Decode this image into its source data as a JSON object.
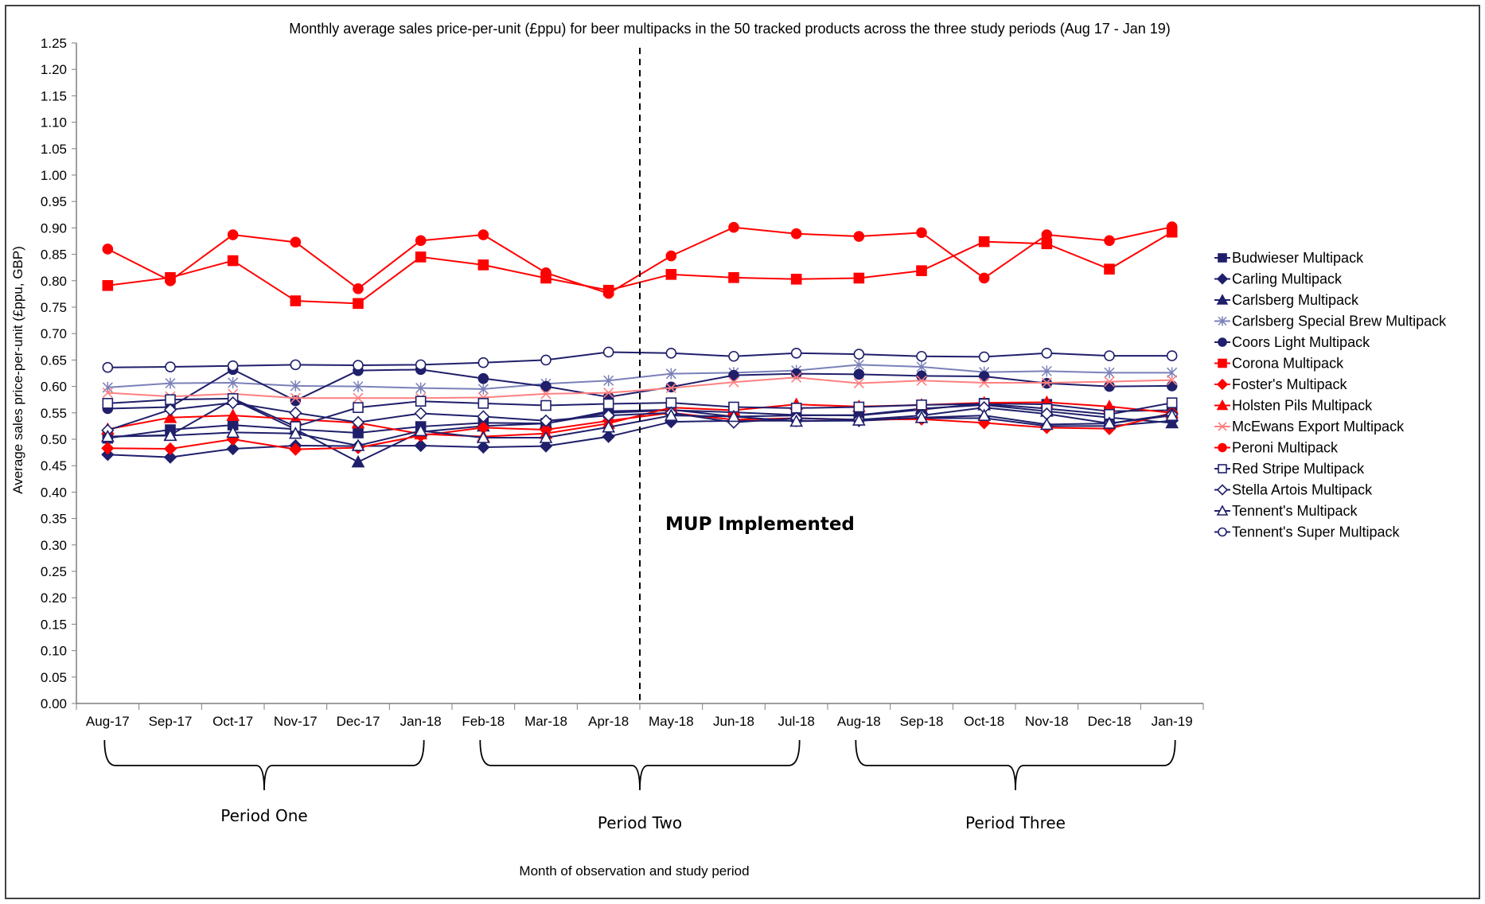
{
  "chart_data": {
    "type": "line",
    "title": "Monthly average sales price-per-unit (£ppu) for beer multipacks in the 50 tracked products across the three study periods (Aug 17 - Jan 19)",
    "xlabel": "Month of observation and study period",
    "ylabel": "Average sales price-per-unit (£ppu, GBP)",
    "ylim": [
      0,
      1.25
    ],
    "ytick_step": 0.05,
    "yticks": [
      "0.00",
      "0.05",
      "0.10",
      "0.15",
      "0.20",
      "0.25",
      "0.30",
      "0.35",
      "0.40",
      "0.45",
      "0.50",
      "0.55",
      "0.60",
      "0.65",
      "0.70",
      "0.75",
      "0.80",
      "0.85",
      "0.90",
      "0.95",
      "1.00",
      "1.05",
      "1.10",
      "1.15",
      "1.20",
      "1.25"
    ],
    "grid": false,
    "legend_position": "right",
    "categories": [
      "Aug-17",
      "Sep-17",
      "Oct-17",
      "Nov-17",
      "Dec-17",
      "Jan-18",
      "Feb-18",
      "Mar-18",
      "Apr-18",
      "May-18",
      "Jun-18",
      "Jul-18",
      "Aug-18",
      "Sep-18",
      "Oct-18",
      "Nov-18",
      "Dec-18",
      "Jan-19"
    ],
    "annotations": [
      {
        "text": "MUP Implemented",
        "after_category": "Apr-18"
      }
    ],
    "periods": [
      {
        "label": "Period One",
        "from": "Aug-17",
        "to": "Jan-18"
      },
      {
        "label": "Period Two",
        "from": "Feb-18",
        "to": "Jul-18"
      },
      {
        "label": "Period Three",
        "from": "Aug-18",
        "to": "Jan-19"
      }
    ],
    "series": [
      {
        "name": "Budwieser Multipack",
        "color": "#1f1f6b",
        "marker": "square-filled",
        "values": [
          0.502,
          0.518,
          0.527,
          0.519,
          0.512,
          0.524,
          0.531,
          0.53,
          0.55,
          0.555,
          0.551,
          0.546,
          0.545,
          0.556,
          0.568,
          0.566,
          0.553,
          0.555
        ]
      },
      {
        "name": "Carling Multipack",
        "color": "#1f1f6b",
        "marker": "diamond-filled",
        "values": [
          0.471,
          0.466,
          0.482,
          0.488,
          0.487,
          0.488,
          0.485,
          0.487,
          0.505,
          0.533,
          0.535,
          0.535,
          0.535,
          0.54,
          0.54,
          0.525,
          0.525,
          0.535
        ]
      },
      {
        "name": "Carlsberg Multipack",
        "color": "#1f1f6b",
        "marker": "triangle-filled",
        "values": [
          0.505,
          0.508,
          0.575,
          0.519,
          0.457,
          0.514,
          0.525,
          0.53,
          0.553,
          0.556,
          0.543,
          0.545,
          0.546,
          0.558,
          0.565,
          0.553,
          0.541,
          0.531
        ]
      },
      {
        "name": "Carlsberg Special Brew Multipack",
        "color": "#7a80b8",
        "marker": "asterisk",
        "values": [
          0.598,
          0.606,
          0.607,
          0.601,
          0.6,
          0.597,
          0.595,
          0.605,
          0.611,
          0.624,
          0.626,
          0.63,
          0.641,
          0.637,
          0.627,
          0.629,
          0.626,
          0.626
        ]
      },
      {
        "name": "Coors Light Multipack",
        "color": "#1f1f6b",
        "marker": "circle-filled",
        "values": [
          0.558,
          0.561,
          0.632,
          0.573,
          0.63,
          0.632,
          0.615,
          0.6,
          0.58,
          0.599,
          0.621,
          0.624,
          0.623,
          0.62,
          0.619,
          0.606,
          0.6,
          0.601
        ]
      },
      {
        "name": "Corona Multipack",
        "color": "#ff0000",
        "marker": "square-filled",
        "values": [
          0.791,
          0.806,
          0.838,
          0.762,
          0.757,
          0.845,
          0.83,
          0.805,
          0.782,
          0.812,
          0.806,
          0.803,
          0.805,
          0.819,
          0.874,
          0.87,
          0.822,
          0.892
        ]
      },
      {
        "name": "Foster's Multipack",
        "color": "#ff0000",
        "marker": "diamond-filled",
        "values": [
          0.483,
          0.482,
          0.5,
          0.481,
          0.484,
          0.507,
          0.522,
          0.518,
          0.535,
          0.55,
          0.537,
          0.54,
          0.537,
          0.538,
          0.531,
          0.522,
          0.52,
          0.55
        ]
      },
      {
        "name": "Holsten Pils Multipack",
        "color": "#ff0000",
        "marker": "triangle-filled",
        "values": [
          0.519,
          0.541,
          0.545,
          0.538,
          0.531,
          0.51,
          0.505,
          0.511,
          0.53,
          0.56,
          0.555,
          0.566,
          0.562,
          0.565,
          0.569,
          0.57,
          0.562,
          0.55
        ]
      },
      {
        "name": "McEwans Export Multipack",
        "color": "#ff8080",
        "marker": "x",
        "values": [
          0.588,
          0.581,
          0.586,
          0.578,
          0.578,
          0.578,
          0.579,
          0.586,
          0.588,
          0.597,
          0.608,
          0.617,
          0.606,
          0.611,
          0.607,
          0.607,
          0.609,
          0.612
        ]
      },
      {
        "name": "Peroni Multipack",
        "color": "#ff0000",
        "marker": "circle-filled",
        "values": [
          0.86,
          0.8,
          0.887,
          0.873,
          0.785,
          0.876,
          0.887,
          0.815,
          0.776,
          0.847,
          0.901,
          0.889,
          0.884,
          0.891,
          0.805,
          0.887,
          0.876,
          0.902
        ]
      },
      {
        "name": "Red Stripe Multipack",
        "color": "#1f1f6b",
        "marker": "square-open",
        "values": [
          0.568,
          0.575,
          0.577,
          0.524,
          0.56,
          0.572,
          0.568,
          0.564,
          0.567,
          0.569,
          0.561,
          0.559,
          0.561,
          0.565,
          0.567,
          0.558,
          0.547,
          0.569
        ]
      },
      {
        "name": "Stella Artois Multipack",
        "color": "#1f1f6b",
        "marker": "diamond-open",
        "values": [
          0.517,
          0.556,
          0.569,
          0.55,
          0.532,
          0.549,
          0.543,
          0.535,
          0.545,
          0.55,
          0.532,
          0.54,
          0.537,
          0.545,
          0.56,
          0.548,
          0.53,
          0.547
        ]
      },
      {
        "name": "Tennent's Multipack",
        "color": "#1f1f6b",
        "marker": "triangle-open",
        "values": [
          0.505,
          0.507,
          0.513,
          0.511,
          0.488,
          0.516,
          0.503,
          0.503,
          0.523,
          0.545,
          0.543,
          0.534,
          0.536,
          0.541,
          0.545,
          0.528,
          0.53,
          0.545
        ]
      },
      {
        "name": "Tennent's Super Multipack",
        "color": "#1f1f6b",
        "marker": "circle-open",
        "values": [
          0.636,
          0.637,
          0.639,
          0.641,
          0.64,
          0.641,
          0.645,
          0.65,
          0.665,
          0.663,
          0.657,
          0.663,
          0.661,
          0.657,
          0.656,
          0.663,
          0.658,
          0.658
        ]
      }
    ]
  }
}
